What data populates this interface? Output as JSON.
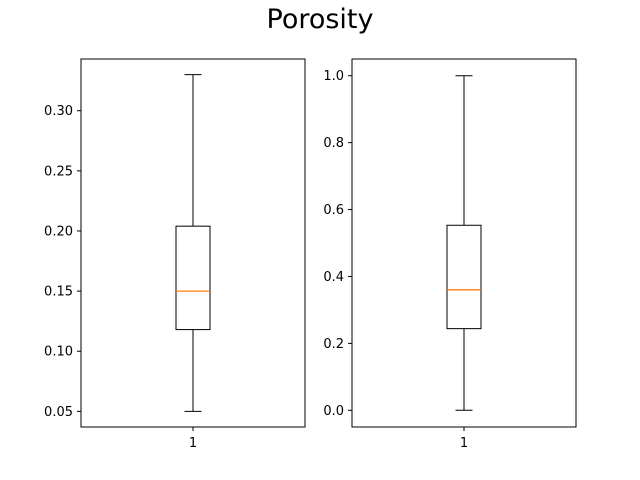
{
  "figure": {
    "title": "Porosity",
    "colors": {
      "box": "#000000",
      "median": "#ff7f0e",
      "frame": "#000000"
    }
  },
  "chart_data": [
    {
      "type": "box",
      "title": "",
      "xlabel": "",
      "ylabel": "",
      "categories": [
        "1"
      ],
      "ylim": [
        0.037,
        0.343
      ],
      "yticks": [
        0.05,
        0.1,
        0.15,
        0.2,
        0.25,
        0.3
      ],
      "ytick_labels": [
        "0.05",
        "0.10",
        "0.15",
        "0.20",
        "0.25",
        "0.30"
      ],
      "box": {
        "whislo": 0.05,
        "q1": 0.118,
        "med": 0.15,
        "q3": 0.204,
        "whishi": 0.33
      },
      "grid": false
    },
    {
      "type": "box",
      "title": "",
      "xlabel": "",
      "ylabel": "",
      "categories": [
        "1"
      ],
      "ylim": [
        -0.05,
        1.05
      ],
      "yticks": [
        0.0,
        0.2,
        0.4,
        0.6,
        0.8,
        1.0
      ],
      "ytick_labels": [
        "0.0",
        "0.2",
        "0.4",
        "0.6",
        "0.8",
        "1.0"
      ],
      "box": {
        "whislo": 0.0,
        "q1": 0.244,
        "med": 0.36,
        "q3": 0.553,
        "whishi": 1.0
      },
      "grid": false
    }
  ]
}
